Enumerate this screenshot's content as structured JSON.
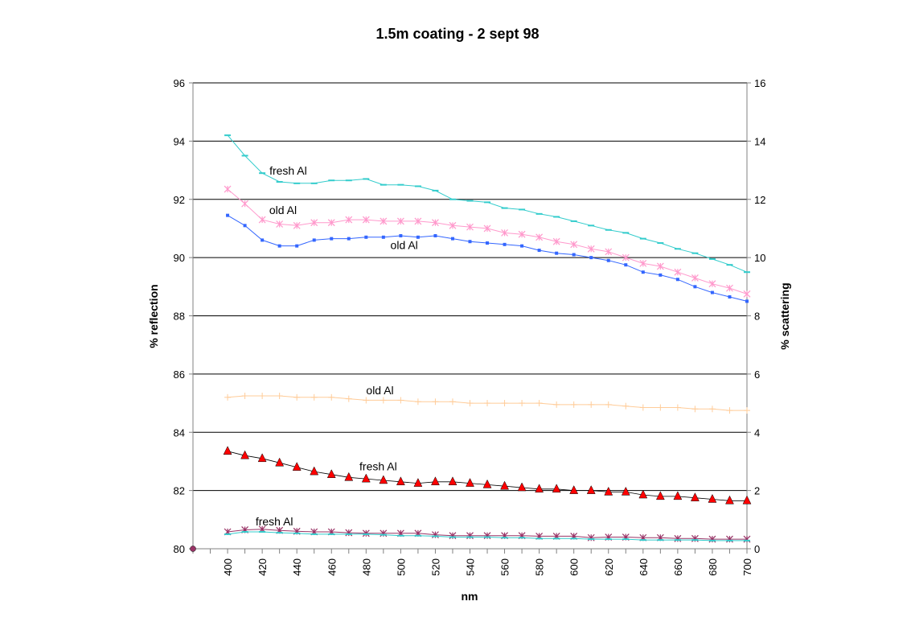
{
  "chart_data": {
    "type": "line",
    "title": "1.5m coating - 2 sept 98",
    "xlabel": "nm",
    "ylabel": "% reflection",
    "y2label": "% scattering",
    "xlim": [
      380,
      700
    ],
    "ylim": [
      80,
      96
    ],
    "y2lim": [
      0,
      16
    ],
    "xticks": [
      "400",
      "420",
      "440",
      "460",
      "480",
      "500",
      "520",
      "540",
      "560",
      "580",
      "600",
      "620",
      "640",
      "660",
      "680",
      "700"
    ],
    "yticks": [
      "80",
      "82",
      "84",
      "86",
      "88",
      "90",
      "92",
      "94",
      "96"
    ],
    "y2ticks": [
      "0",
      "2",
      "4",
      "6",
      "8",
      "10",
      "12",
      "14",
      "16"
    ],
    "grid": "horizontal",
    "x": [
      400,
      410,
      420,
      430,
      440,
      450,
      460,
      470,
      480,
      490,
      500,
      510,
      520,
      530,
      540,
      550,
      560,
      570,
      580,
      590,
      600,
      610,
      620,
      630,
      640,
      650,
      660,
      670,
      680,
      690,
      700
    ],
    "series": [
      {
        "axis": "left",
        "color": "#33cccc",
        "marker": "dash",
        "values": [
          94.2,
          93.5,
          92.9,
          92.6,
          92.55,
          92.55,
          92.65,
          92.65,
          92.7,
          92.5,
          92.5,
          92.45,
          92.3,
          92.0,
          91.95,
          91.9,
          91.7,
          91.65,
          91.5,
          91.4,
          91.25,
          91.1,
          90.95,
          90.85,
          90.65,
          90.5,
          90.3,
          90.15,
          89.95,
          89.75,
          89.5
        ]
      },
      {
        "axis": "left",
        "color": "#ff99cc",
        "marker": "asterisk",
        "values": [
          92.35,
          91.85,
          91.3,
          91.15,
          91.1,
          91.2,
          91.2,
          91.3,
          91.3,
          91.25,
          91.25,
          91.25,
          91.2,
          91.1,
          91.05,
          91.0,
          90.85,
          90.8,
          90.7,
          90.55,
          90.45,
          90.3,
          90.2,
          90.0,
          89.8,
          89.7,
          89.5,
          89.3,
          89.1,
          88.95,
          88.75
        ]
      },
      {
        "axis": "left",
        "color": "#3366ff",
        "marker": "dot",
        "values": [
          91.45,
          91.1,
          90.6,
          90.4,
          90.4,
          90.6,
          90.65,
          90.65,
          90.7,
          90.7,
          90.75,
          90.7,
          90.75,
          90.65,
          90.55,
          90.5,
          90.45,
          90.4,
          90.25,
          90.15,
          90.1,
          90.0,
          89.9,
          89.75,
          89.5,
          89.4,
          89.25,
          89.0,
          88.8,
          88.65,
          88.5
        ]
      },
      {
        "axis": "right",
        "color": "#ffcc99",
        "marker": "plus",
        "values": [
          5.2,
          5.25,
          5.25,
          5.25,
          5.2,
          5.2,
          5.2,
          5.15,
          5.1,
          5.1,
          5.1,
          5.05,
          5.05,
          5.05,
          5.0,
          5.0,
          5.0,
          5.0,
          5.0,
          4.95,
          4.95,
          4.95,
          4.95,
          4.9,
          4.85,
          4.85,
          4.85,
          4.8,
          4.8,
          4.75,
          4.75
        ]
      },
      {
        "axis": "right",
        "color": "#ff0000",
        "marker": "triangle",
        "values": [
          3.35,
          3.2,
          3.1,
          2.95,
          2.8,
          2.65,
          2.55,
          2.45,
          2.4,
          2.35,
          2.3,
          2.25,
          2.3,
          2.3,
          2.25,
          2.2,
          2.15,
          2.1,
          2.05,
          2.05,
          2.0,
          2.0,
          1.95,
          1.95,
          1.85,
          1.8,
          1.8,
          1.75,
          1.7,
          1.65,
          1.65
        ]
      },
      {
        "axis": "right",
        "color": "#993366",
        "marker": "asterisk",
        "values": [
          0.58,
          0.65,
          0.67,
          0.63,
          0.6,
          0.58,
          0.58,
          0.55,
          0.53,
          0.53,
          0.53,
          0.53,
          0.48,
          0.45,
          0.45,
          0.45,
          0.45,
          0.45,
          0.43,
          0.43,
          0.43,
          0.38,
          0.4,
          0.4,
          0.38,
          0.38,
          0.35,
          0.35,
          0.33,
          0.33,
          0.33
        ]
      },
      {
        "axis": "right",
        "color": "#33cccc",
        "marker": "dash",
        "values": [
          0.5,
          0.58,
          0.58,
          0.55,
          0.53,
          0.5,
          0.5,
          0.5,
          0.5,
          0.48,
          0.45,
          0.45,
          0.43,
          0.4,
          0.4,
          0.4,
          0.38,
          0.38,
          0.35,
          0.35,
          0.35,
          0.33,
          0.33,
          0.33,
          0.3,
          0.3,
          0.3,
          0.3,
          0.28,
          0.28,
          0.28
        ]
      }
    ],
    "origin_marker": {
      "x": 380,
      "y": 80,
      "color": "#993366"
    },
    "annotations": [
      {
        "text": "fresh Al",
        "x": 435,
        "y": 92.85,
        "axis": "left"
      },
      {
        "text": "old Al",
        "x": 432,
        "y": 91.5,
        "axis": "left"
      },
      {
        "text": "old Al",
        "x": 502,
        "y": 90.3,
        "axis": "left"
      },
      {
        "text": "old Al",
        "x": 488,
        "y": 5.3,
        "axis": "right"
      },
      {
        "text": "fresh Al",
        "x": 487,
        "y": 2.7,
        "axis": "right"
      },
      {
        "text": "fresh Al",
        "x": 427,
        "y": 0.8,
        "axis": "right"
      }
    ]
  }
}
